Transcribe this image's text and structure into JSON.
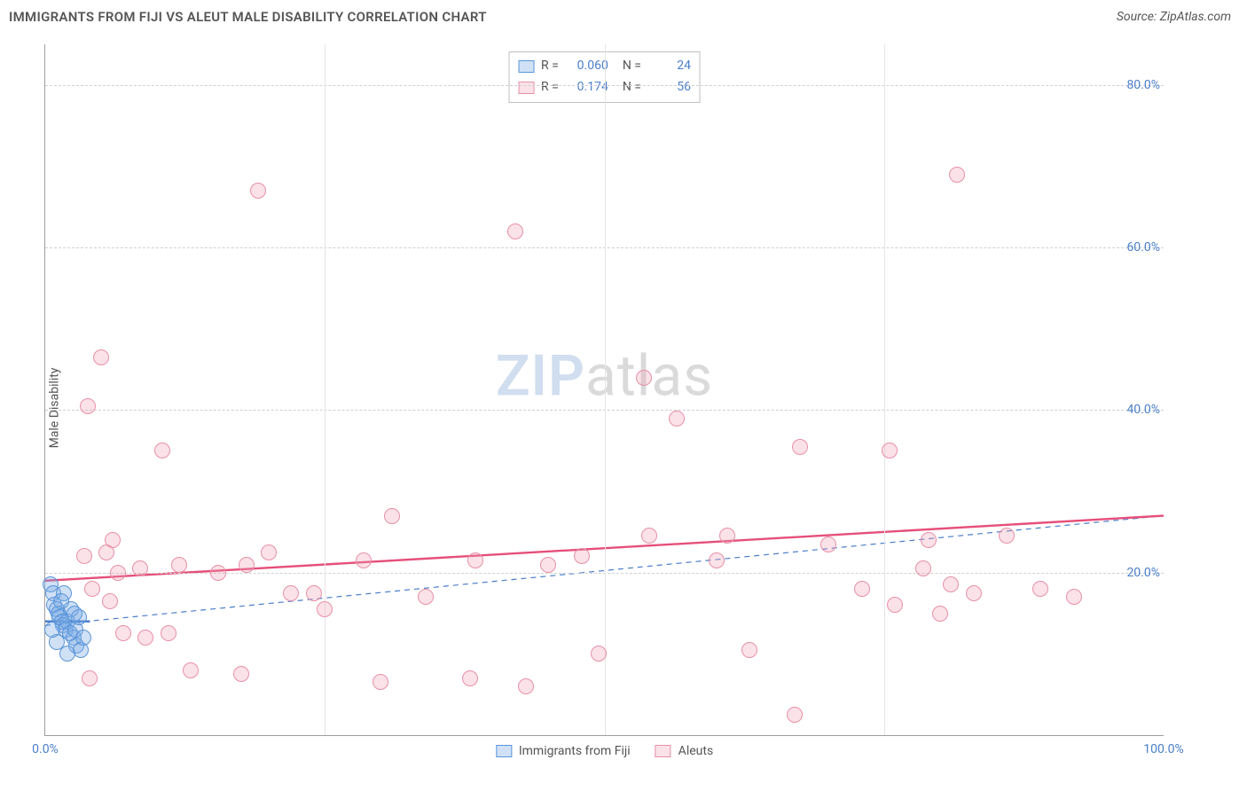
{
  "title": "IMMIGRANTS FROM FIJI VS ALEUT MALE DISABILITY CORRELATION CHART",
  "source": "Source: ZipAtlas.com",
  "y_axis_label": "Male Disability",
  "watermark": {
    "part1": "ZIP",
    "part2": "atlas"
  },
  "chart": {
    "type": "scatter",
    "background_color": "#ffffff",
    "grid_color_dashed": "#d0d0d0",
    "grid_color_solid": "#e5e5e5",
    "axis_color": "#9e9e9e",
    "tick_label_color": "#4a7ec9",
    "tick_fontsize": 14,
    "xlim": [
      0,
      100
    ],
    "ylim": [
      0,
      85
    ],
    "y_ticks": [
      {
        "value": 20,
        "label": "20.0%"
      },
      {
        "value": 40,
        "label": "40.0%"
      },
      {
        "value": 60,
        "label": "60.0%"
      },
      {
        "value": 80,
        "label": "80.0%"
      }
    ],
    "x_ticks": [
      {
        "value": 0,
        "label": "0.0%"
      },
      {
        "value": 100,
        "label": "100.0%"
      }
    ],
    "x_minor_gridlines": [
      25,
      50,
      75
    ],
    "marker_radius": 9,
    "series": [
      {
        "name": "Immigrants from Fiji",
        "color_fill": "rgba(120,170,230,0.35)",
        "color_stroke": "#5a95d8",
        "R": "0.060",
        "N": "24",
        "trend": {
          "y_at_x0": 13.5,
          "y_at_x100": 27.0,
          "stroke": "#4a7ec9",
          "width": 1.2,
          "dash": "6,5",
          "solid_segment": {
            "x0": 0,
            "y0": 14.0,
            "x1": 4,
            "y1": 14.0
          }
        },
        "points": [
          {
            "x": 0.5,
            "y": 18.5
          },
          {
            "x": 0.7,
            "y": 17.5
          },
          {
            "x": 0.8,
            "y": 16.0
          },
          {
            "x": 1.0,
            "y": 15.5
          },
          {
            "x": 1.2,
            "y": 15.0
          },
          {
            "x": 1.3,
            "y": 14.5
          },
          {
            "x": 1.5,
            "y": 14.0
          },
          {
            "x": 1.6,
            "y": 13.5
          },
          {
            "x": 1.7,
            "y": 17.5
          },
          {
            "x": 1.8,
            "y": 13.0
          },
          {
            "x": 2.0,
            "y": 14.0
          },
          {
            "x": 2.2,
            "y": 12.5
          },
          {
            "x": 2.3,
            "y": 15.5
          },
          {
            "x": 2.5,
            "y": 12.0
          },
          {
            "x": 2.7,
            "y": 13.0
          },
          {
            "x": 2.8,
            "y": 11.0
          },
          {
            "x": 3.0,
            "y": 14.5
          },
          {
            "x": 3.2,
            "y": 10.5
          },
          {
            "x": 1.0,
            "y": 11.5
          },
          {
            "x": 1.4,
            "y": 16.5
          },
          {
            "x": 0.6,
            "y": 13.0
          },
          {
            "x": 2.0,
            "y": 10.0
          },
          {
            "x": 2.6,
            "y": 15.0
          },
          {
            "x": 3.4,
            "y": 12.0
          }
        ]
      },
      {
        "name": "Aleuts",
        "color_fill": "rgba(240,160,180,0.30)",
        "color_stroke": "#e890a8",
        "R": "0.174",
        "N": "56",
        "trend": {
          "y_at_x0": 19.0,
          "y_at_x100": 27.0,
          "stroke": "#e64f7a",
          "width": 2.4,
          "dash": null
        },
        "points": [
          {
            "x": 3.5,
            "y": 22.0
          },
          {
            "x": 3.8,
            "y": 40.5
          },
          {
            "x": 4.0,
            "y": 7.0
          },
          {
            "x": 5.0,
            "y": 46.5
          },
          {
            "x": 5.5,
            "y": 22.5
          },
          {
            "x": 6.5,
            "y": 20.0
          },
          {
            "x": 7.0,
            "y": 12.5
          },
          {
            "x": 8.5,
            "y": 20.5
          },
          {
            "x": 9.0,
            "y": 12.0
          },
          {
            "x": 10.5,
            "y": 35.0
          },
          {
            "x": 11.0,
            "y": 12.5
          },
          {
            "x": 13.0,
            "y": 8.0
          },
          {
            "x": 17.5,
            "y": 7.5
          },
          {
            "x": 18.0,
            "y": 21.0
          },
          {
            "x": 19.0,
            "y": 67.0
          },
          {
            "x": 20.0,
            "y": 22.5
          },
          {
            "x": 24.0,
            "y": 17.5
          },
          {
            "x": 25.0,
            "y": 15.5
          },
          {
            "x": 28.5,
            "y": 21.5
          },
          {
            "x": 30.0,
            "y": 6.5
          },
          {
            "x": 31.0,
            "y": 27.0
          },
          {
            "x": 34.0,
            "y": 17.0
          },
          {
            "x": 38.0,
            "y": 7.0
          },
          {
            "x": 38.5,
            "y": 21.5
          },
          {
            "x": 42.0,
            "y": 62.0
          },
          {
            "x": 43.0,
            "y": 6.0
          },
          {
            "x": 45.0,
            "y": 21.0
          },
          {
            "x": 49.5,
            "y": 10.0
          },
          {
            "x": 53.5,
            "y": 44.0
          },
          {
            "x": 54.0,
            "y": 24.5
          },
          {
            "x": 56.5,
            "y": 39.0
          },
          {
            "x": 60.0,
            "y": 21.5
          },
          {
            "x": 61.0,
            "y": 24.5
          },
          {
            "x": 63.0,
            "y": 10.5
          },
          {
            "x": 67.0,
            "y": 2.5
          },
          {
            "x": 67.5,
            "y": 35.5
          },
          {
            "x": 70.0,
            "y": 23.5
          },
          {
            "x": 73.0,
            "y": 18.0
          },
          {
            "x": 75.5,
            "y": 35.0
          },
          {
            "x": 76.0,
            "y": 16.0
          },
          {
            "x": 78.5,
            "y": 20.5
          },
          {
            "x": 79.0,
            "y": 24.0
          },
          {
            "x": 80.0,
            "y": 15.0
          },
          {
            "x": 81.0,
            "y": 18.5
          },
          {
            "x": 81.5,
            "y": 69.0
          },
          {
            "x": 83.0,
            "y": 17.5
          },
          {
            "x": 86.0,
            "y": 24.5
          },
          {
            "x": 89.0,
            "y": 18.0
          },
          {
            "x": 92.0,
            "y": 17.0
          },
          {
            "x": 4.2,
            "y": 18.0
          },
          {
            "x": 5.8,
            "y": 16.5
          },
          {
            "x": 6.0,
            "y": 24.0
          },
          {
            "x": 12.0,
            "y": 21.0
          },
          {
            "x": 15.5,
            "y": 20.0
          },
          {
            "x": 22.0,
            "y": 17.5
          },
          {
            "x": 48.0,
            "y": 22.0
          }
        ]
      }
    ]
  },
  "legend_top": {
    "R_label": "R =",
    "N_label": "N ="
  },
  "legend_bottom": [
    {
      "swatch": "blue",
      "label": "Immigrants from Fiji"
    },
    {
      "swatch": "pink",
      "label": "Aleuts"
    }
  ]
}
